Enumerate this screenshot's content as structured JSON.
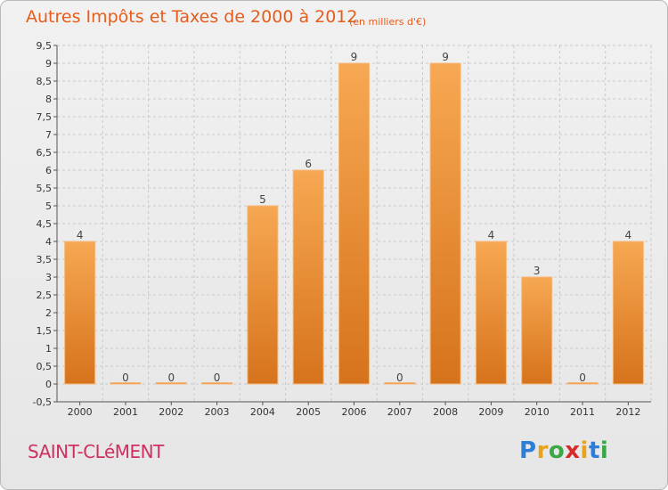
{
  "header": {
    "title": "Autres Impôts et Taxes de 2000 à 2012",
    "unit": "(en milliers d'€)"
  },
  "footer": {
    "commune": "SAINT-CLéMENT",
    "logo": {
      "p": "P",
      "r": "r",
      "o": "o",
      "x": "x",
      "i1": "i",
      "t": "t",
      "i2": "i"
    }
  },
  "colors": {
    "bar_top": "#f7a852",
    "bar_bottom": "#d6731c",
    "title": "#e65c1a",
    "commune": "#d0305f"
  },
  "chart_data": {
    "type": "bar",
    "title": "Autres Impôts et Taxes de 2000 à 2012",
    "subtitle": "(en milliers d'€)",
    "categories": [
      "2000",
      "2001",
      "2002",
      "2003",
      "2004",
      "2005",
      "2006",
      "2007",
      "2008",
      "2009",
      "2010",
      "2011",
      "2012"
    ],
    "values": [
      4,
      0,
      0,
      0,
      5,
      6,
      9,
      0,
      9,
      4,
      3,
      0,
      4
    ],
    "ylim": [
      -0.5,
      9.5
    ],
    "yticks": [
      "-0,5",
      "0",
      "0,5",
      "1",
      "1,5",
      "2",
      "2,5",
      "3",
      "3,5",
      "4",
      "4,5",
      "5",
      "5,5",
      "6",
      "6,5",
      "7",
      "7,5",
      "8",
      "8,5",
      "9",
      "9,5"
    ],
    "grid": true,
    "legend": "none"
  }
}
